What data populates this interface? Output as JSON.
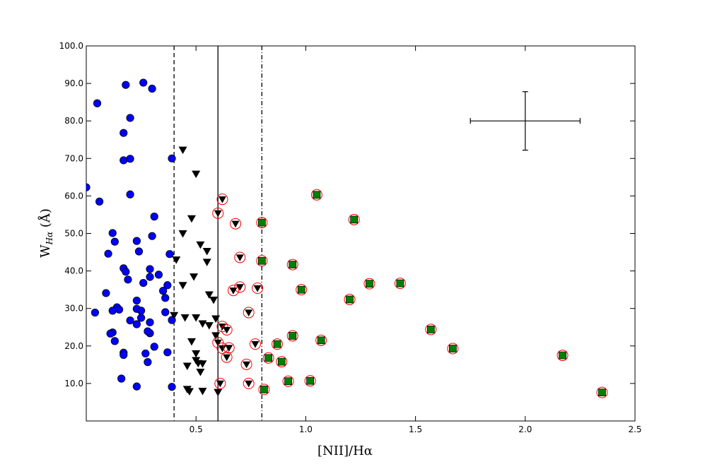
{
  "chart_data": {
    "type": "scatter",
    "xlabel": "[NII]/Hα",
    "ylabel_main": "W",
    "ylabel_sub": "Hα",
    "ylabel_unit": " (Å)",
    "xlim": [
      0.0,
      2.5
    ],
    "ylim": [
      0.0,
      100.0
    ],
    "x_ticks": [
      0.5,
      1.0,
      1.5,
      2.0,
      2.5
    ],
    "x_tick_labels": [
      "0.5",
      "1.0",
      "1.5",
      "2.0",
      "2.5"
    ],
    "y_ticks": [
      10,
      20,
      30,
      40,
      50,
      60,
      70,
      80,
      90,
      100
    ],
    "y_tick_labels": [
      "10.0",
      "20.0",
      "30.0",
      "40.0",
      "50.0",
      "60.0",
      "70.0",
      "80.0",
      "90.0",
      "100.0"
    ],
    "grid": false,
    "colors": {
      "blue_circle": "#0000ff",
      "triangle": "#000000",
      "green_square": "#008000",
      "red_ring": "#ff0000"
    },
    "vertical_lines": [
      {
        "x": 0.4,
        "style": "dashed"
      },
      {
        "x": 0.6,
        "style": "solid"
      },
      {
        "x": 0.8,
        "style": "dashdot"
      }
    ],
    "error_bar": {
      "x": 2.0,
      "y": 80.0,
      "xerr": 0.25,
      "yerr": 7.8
    },
    "series": [
      {
        "marker": "circle-blue",
        "points": [
          [
            0.0,
            62.3
          ],
          [
            0.05,
            84.7
          ],
          [
            0.18,
            89.6
          ],
          [
            0.26,
            90.2
          ],
          [
            0.3,
            88.6
          ],
          [
            0.2,
            80.8
          ],
          [
            0.17,
            76.8
          ],
          [
            0.17,
            69.5
          ],
          [
            0.2,
            69.9
          ],
          [
            0.39,
            70.0
          ],
          [
            0.2,
            60.4
          ],
          [
            0.06,
            58.5
          ],
          [
            0.31,
            54.5
          ],
          [
            0.12,
            50.1
          ],
          [
            0.3,
            49.3
          ],
          [
            0.13,
            47.8
          ],
          [
            0.23,
            48.0
          ],
          [
            0.1,
            44.6
          ],
          [
            0.24,
            45.2
          ],
          [
            0.38,
            44.5
          ],
          [
            0.17,
            40.7
          ],
          [
            0.18,
            39.8
          ],
          [
            0.29,
            40.5
          ],
          [
            0.33,
            39.0
          ],
          [
            0.19,
            37.7
          ],
          [
            0.29,
            38.4
          ],
          [
            0.26,
            36.8
          ],
          [
            0.37,
            36.2
          ],
          [
            0.35,
            34.7
          ],
          [
            0.09,
            34.1
          ],
          [
            0.36,
            32.8
          ],
          [
            0.23,
            32.1
          ],
          [
            0.14,
            30.3
          ],
          [
            0.12,
            29.4
          ],
          [
            0.15,
            29.7
          ],
          [
            0.23,
            29.9
          ],
          [
            0.25,
            29.4
          ],
          [
            0.36,
            29.0
          ],
          [
            0.04,
            28.9
          ],
          [
            0.25,
            27.5
          ],
          [
            0.2,
            26.8
          ],
          [
            0.29,
            26.3
          ],
          [
            0.39,
            26.9
          ],
          [
            0.23,
            25.8
          ],
          [
            0.12,
            23.6
          ],
          [
            0.11,
            23.3
          ],
          [
            0.29,
            23.4
          ],
          [
            0.28,
            23.9
          ],
          [
            0.13,
            21.3
          ],
          [
            0.31,
            19.8
          ],
          [
            0.17,
            18.2
          ],
          [
            0.17,
            17.6
          ],
          [
            0.27,
            18.0
          ],
          [
            0.37,
            18.3
          ],
          [
            0.28,
            15.7
          ],
          [
            0.16,
            11.3
          ],
          [
            0.23,
            9.2
          ],
          [
            0.39,
            9.1
          ]
        ]
      },
      {
        "marker": "triangle-black",
        "points": [
          [
            0.44,
            72.3
          ],
          [
            0.5,
            65.9
          ],
          [
            0.48,
            54.0
          ],
          [
            0.44,
            50.0
          ],
          [
            0.52,
            47.0
          ],
          [
            0.55,
            45.3
          ],
          [
            0.41,
            43.0
          ],
          [
            0.55,
            42.4
          ],
          [
            0.49,
            38.5
          ],
          [
            0.44,
            36.2
          ],
          [
            0.56,
            33.7
          ],
          [
            0.58,
            32.3
          ],
          [
            0.4,
            28.2
          ],
          [
            0.45,
            27.6
          ],
          [
            0.5,
            27.6
          ],
          [
            0.59,
            27.3
          ],
          [
            0.53,
            26.0
          ],
          [
            0.56,
            25.5
          ],
          [
            0.59,
            22.8
          ],
          [
            0.48,
            21.2
          ],
          [
            0.5,
            18.0
          ],
          [
            0.46,
            14.7
          ],
          [
            0.5,
            16.2
          ],
          [
            0.51,
            15.4
          ],
          [
            0.53,
            15.3
          ],
          [
            0.52,
            13.1
          ],
          [
            0.46,
            8.5
          ],
          [
            0.47,
            7.9
          ],
          [
            0.53,
            8.0
          ],
          [
            0.6,
            7.7
          ]
        ]
      },
      {
        "marker": "triangle-in-red-circle",
        "points": [
          [
            0.62,
            59.1
          ],
          [
            0.6,
            55.4
          ],
          [
            0.68,
            52.6
          ],
          [
            0.7,
            43.6
          ],
          [
            0.7,
            35.7
          ],
          [
            0.67,
            34.8
          ],
          [
            0.78,
            35.4
          ],
          [
            0.74,
            28.9
          ],
          [
            0.62,
            25.2
          ],
          [
            0.64,
            24.3
          ],
          [
            0.6,
            20.9
          ],
          [
            0.62,
            19.4
          ],
          [
            0.65,
            19.5
          ],
          [
            0.77,
            20.5
          ],
          [
            0.64,
            17.0
          ],
          [
            0.73,
            15.1
          ],
          [
            0.61,
            10.0
          ],
          [
            0.74,
            10.0
          ]
        ]
      },
      {
        "marker": "square-green-in-red-circle",
        "points": [
          [
            1.05,
            60.3
          ],
          [
            1.22,
            53.7
          ],
          [
            0.8,
            52.9
          ],
          [
            0.8,
            42.7
          ],
          [
            0.94,
            41.7
          ],
          [
            1.29,
            36.6
          ],
          [
            1.43,
            36.7
          ],
          [
            0.98,
            35.0
          ],
          [
            1.2,
            32.4
          ],
          [
            1.57,
            24.4
          ],
          [
            0.94,
            22.7
          ],
          [
            1.07,
            21.5
          ],
          [
            0.87,
            20.5
          ],
          [
            1.67,
            19.3
          ],
          [
            2.17,
            17.5
          ],
          [
            0.83,
            16.8
          ],
          [
            0.89,
            15.8
          ],
          [
            0.92,
            10.6
          ],
          [
            1.02,
            10.7
          ],
          [
            0.81,
            8.4
          ],
          [
            2.35,
            7.6
          ]
        ]
      }
    ]
  }
}
